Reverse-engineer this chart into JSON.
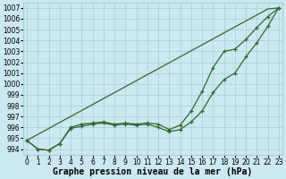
{
  "xlabel": "Graphe pression niveau de la mer (hPa)",
  "x": [
    0,
    1,
    2,
    3,
    4,
    5,
    6,
    7,
    8,
    9,
    10,
    11,
    12,
    13,
    14,
    15,
    16,
    17,
    18,
    19,
    20,
    21,
    22,
    23
  ],
  "line_straight": [
    994.8,
    995.35,
    995.9,
    996.45,
    997.0,
    997.55,
    998.1,
    998.65,
    999.2,
    999.75,
    1000.3,
    1000.85,
    1001.4,
    1001.95,
    1002.5,
    1003.05,
    1003.6,
    1004.15,
    1004.7,
    1005.25,
    1005.8,
    1006.35,
    1006.9,
    1007.0
  ],
  "line_upper": [
    994.8,
    994.0,
    993.9,
    994.5,
    996.0,
    996.3,
    996.4,
    996.5,
    996.3,
    996.4,
    996.3,
    996.4,
    996.3,
    995.8,
    996.2,
    997.5,
    999.3,
    1001.5,
    1003.0,
    1003.2,
    1004.1,
    1005.2,
    1006.2,
    1007.0
  ],
  "line_lower": [
    994.8,
    994.0,
    993.9,
    994.5,
    995.9,
    996.1,
    996.3,
    996.4,
    996.2,
    996.3,
    996.2,
    996.3,
    996.0,
    995.6,
    995.8,
    996.5,
    997.5,
    999.2,
    1000.4,
    1001.0,
    1002.5,
    1003.8,
    1005.3,
    1007.0
  ],
  "bg_color": "#cce8f0",
  "grid_color": "#aaccd8",
  "line_color": "#2d6a2d",
  "marker": "+",
  "ylim": [
    993.5,
    1007.5
  ],
  "yticks": [
    994,
    995,
    996,
    997,
    998,
    999,
    1000,
    1001,
    1002,
    1003,
    1004,
    1005,
    1006,
    1007
  ],
  "xticks": [
    0,
    1,
    2,
    3,
    4,
    5,
    6,
    7,
    8,
    9,
    10,
    11,
    12,
    13,
    14,
    15,
    16,
    17,
    18,
    19,
    20,
    21,
    22,
    23
  ],
  "xlabel_fontsize": 7,
  "tick_fontsize": 5.5,
  "line_width": 0.9
}
